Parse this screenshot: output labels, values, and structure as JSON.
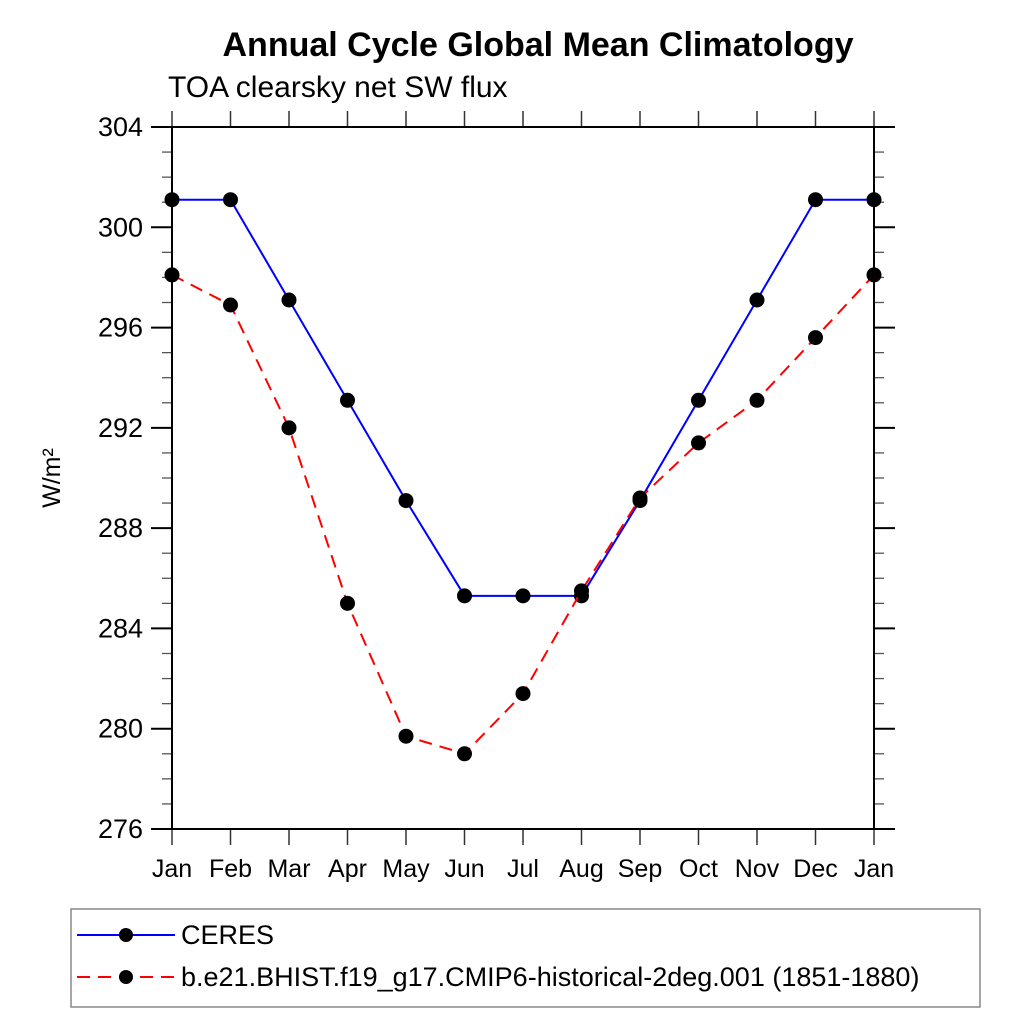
{
  "chart_data": {
    "type": "line",
    "title": "Annual Cycle Global Mean Climatology",
    "subtitle": "TOA clearsky net SW flux",
    "xlabel": "",
    "ylabel": "W/m²",
    "ylim": [
      276,
      304
    ],
    "y_major_step": 4,
    "y_minor_step": 1,
    "grid": false,
    "legend_position": "bottom",
    "categories": [
      "Jan",
      "Feb",
      "Mar",
      "Apr",
      "May",
      "Jun",
      "Jul",
      "Aug",
      "Sep",
      "Oct",
      "Nov",
      "Dec",
      "Jan"
    ],
    "y_major_ticks": [
      276,
      280,
      284,
      288,
      292,
      296,
      300,
      304
    ],
    "series": [
      {
        "name": "CERES",
        "color": "#0000ff",
        "line_style": "solid",
        "marker": "circle",
        "marker_color": "#000000",
        "values": [
          301.1,
          301.1,
          297.1,
          293.1,
          289.1,
          285.3,
          285.3,
          285.3,
          289.1,
          293.1,
          297.1,
          301.1,
          301.1
        ]
      },
      {
        "name": "b.e21.BHIST.f19_g17.CMIP6-historical-2deg.001 (1851-1880)",
        "color": "#ff0000",
        "line_style": "dashed",
        "marker": "circle",
        "marker_color": "#000000",
        "values": [
          298.1,
          296.9,
          292.0,
          285.0,
          279.7,
          279.0,
          281.4,
          285.5,
          289.2,
          291.4,
          293.1,
          295.6,
          298.1
        ]
      }
    ]
  }
}
